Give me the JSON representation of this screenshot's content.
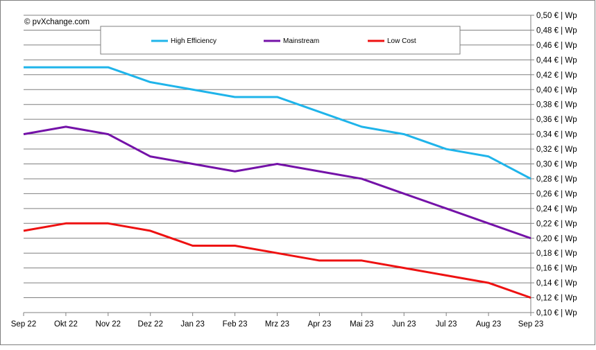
{
  "copyright": "© pvXchange.com",
  "colors": {
    "high_efficiency": "#1fb4ea",
    "mainstream": "#7412a8",
    "low_cost": "#ee1111",
    "grid": "#7f7f7f",
    "border": "#7f7f7f"
  },
  "chart_data": {
    "type": "line",
    "title": "",
    "xlabel": "",
    "ylabel": "",
    "categories": [
      "Sep 22",
      "Okt 22",
      "Nov 22",
      "Dez 22",
      "Jan 23",
      "Feb 23",
      "Mrz 23",
      "Apr 23",
      "Mai 23",
      "Jun 23",
      "Jul 23",
      "Aug 23",
      "Sep 23"
    ],
    "ylim": [
      0.1,
      0.5
    ],
    "ytick_step": 0.02,
    "ytick_labels": [
      "0,10 € | Wp",
      "0,12 € | Wp",
      "0,14 € | Wp",
      "0,16 € | Wp",
      "0,18 € | Wp",
      "0,20 € | Wp",
      "0,22 € | Wp",
      "0,24 € | Wp",
      "0,26 € | Wp",
      "0,28 € | Wp",
      "0,30 € | Wp",
      "0,32 € | Wp",
      "0,34 € | Wp",
      "0,36 € | Wp",
      "0,38 € | Wp",
      "0,40 € | Wp",
      "0,42 € | Wp",
      "0,44 € | Wp",
      "0,46 € | Wp",
      "0,48 € | Wp",
      "0,50 € | Wp"
    ],
    "y_axis_position": "right",
    "grid": true,
    "legend_position": "top",
    "series": [
      {
        "name": "High Efficiency",
        "color_key": "high_efficiency",
        "values": [
          0.43,
          0.43,
          0.43,
          0.41,
          0.4,
          0.39,
          0.39,
          0.37,
          0.35,
          0.34,
          0.32,
          0.31,
          0.28
        ]
      },
      {
        "name": "Mainstream",
        "color_key": "mainstream",
        "values": [
          0.34,
          0.35,
          0.34,
          0.31,
          0.3,
          0.29,
          0.3,
          0.29,
          0.28,
          0.26,
          0.24,
          0.22,
          0.2
        ]
      },
      {
        "name": "Low Cost",
        "color_key": "low_cost",
        "values": [
          0.21,
          0.22,
          0.22,
          0.21,
          0.19,
          0.19,
          0.18,
          0.17,
          0.17,
          0.16,
          0.15,
          0.14,
          0.12
        ]
      }
    ]
  }
}
